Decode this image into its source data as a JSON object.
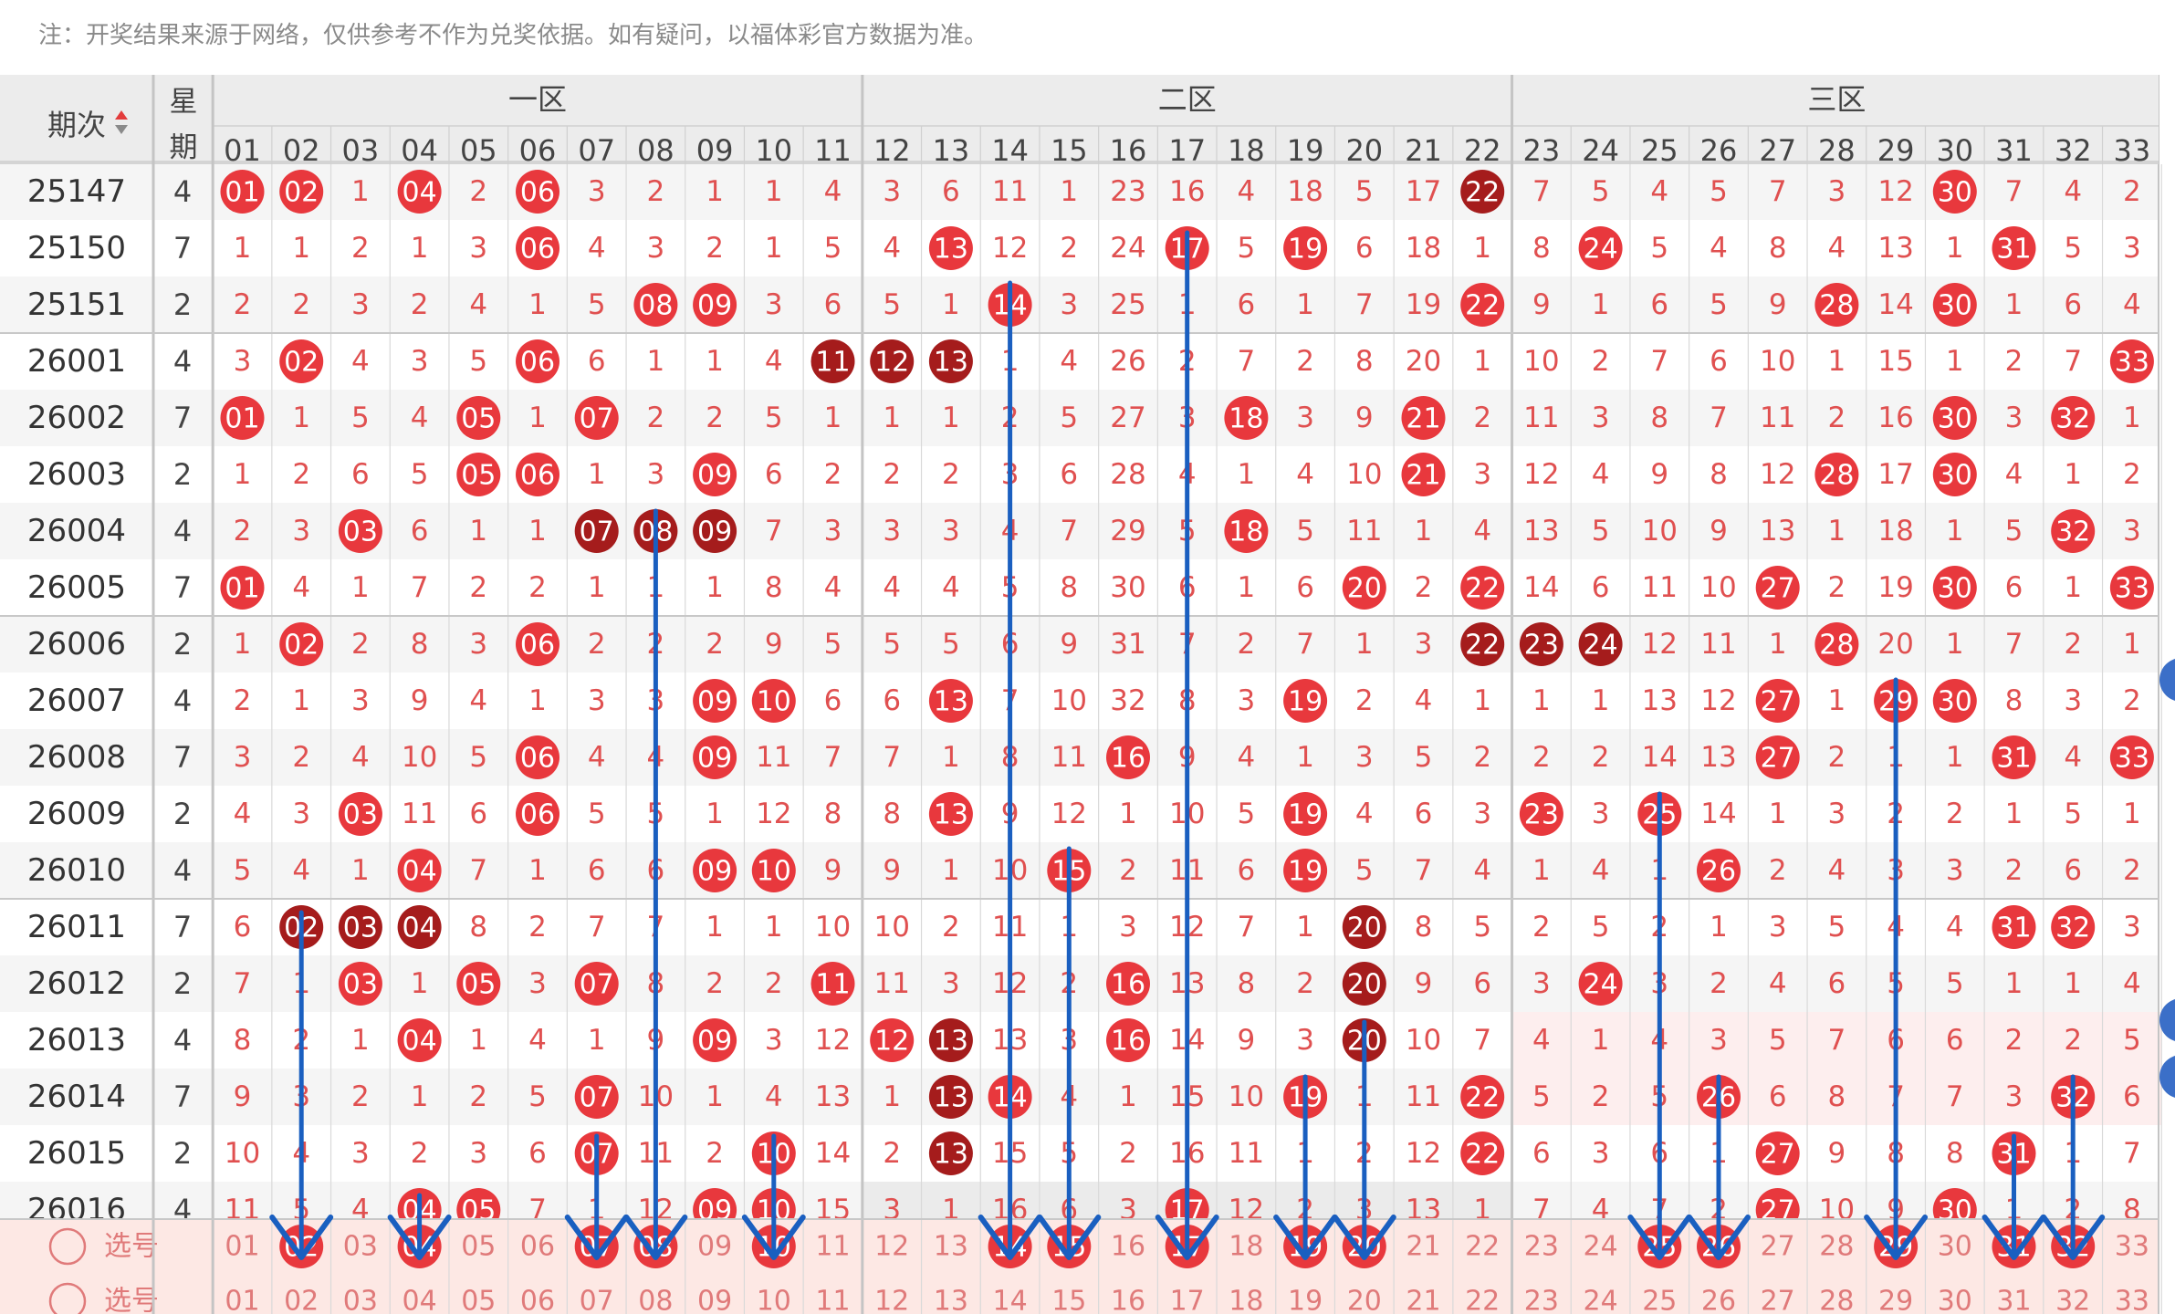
{
  "note": "注：开奖结果来源于网络，仅供参考不作为兑奖依据。如有疑问，以福体彩官方数据为准。",
  "header": {
    "period_label": "期次",
    "weekday_label": "星期",
    "zones": [
      "一区",
      "二区",
      "三区"
    ],
    "numbers": [
      "01",
      "02",
      "03",
      "04",
      "05",
      "06",
      "07",
      "08",
      "09",
      "10",
      "11",
      "12",
      "13",
      "14",
      "15",
      "16",
      "17",
      "18",
      "19",
      "20",
      "21",
      "22",
      "23",
      "24",
      "25",
      "26",
      "27",
      "28",
      "29",
      "30",
      "31",
      "32",
      "33"
    ]
  },
  "colors": {
    "hit": "#e8383d",
    "hit_dark": "#a51c1c",
    "miss_text": "#e05050",
    "arrow": "#1a5fc0",
    "header_bg": "#ececec",
    "select_row_bg": "#fde8e4",
    "select_text": "#e07a7a"
  },
  "select_rows": [
    {
      "label": "选号",
      "picked": [
        "02",
        "04",
        "07",
        "08",
        "10",
        "14",
        "15",
        "17",
        "19",
        "20",
        "25",
        "26",
        "29",
        "31",
        "32"
      ]
    },
    {
      "label": "选号",
      "picked": []
    }
  ],
  "rows": [
    {
      "issue": "25147",
      "week": "4",
      "cells": [
        "01",
        "02",
        "1",
        "04",
        "2",
        "06",
        "3",
        "2",
        "1",
        "1",
        "4",
        "3",
        "6",
        "11",
        "1",
        "23",
        "16",
        "4",
        "18",
        "5",
        "17",
        "22",
        "7",
        "5",
        "4",
        "5",
        "7",
        "3",
        "12",
        "30",
        "7",
        "4",
        "2"
      ],
      "dark": [
        22
      ]
    },
    {
      "issue": "25150",
      "week": "7",
      "cells": [
        "1",
        "1",
        "2",
        "1",
        "3",
        "06",
        "4",
        "3",
        "2",
        "1",
        "5",
        "4",
        "13",
        "12",
        "2",
        "24",
        "17",
        "5",
        "19",
        "6",
        "18",
        "1",
        "8",
        "24",
        "5",
        "4",
        "8",
        "4",
        "13",
        "1",
        "31",
        "5",
        "3"
      ],
      "dark": []
    },
    {
      "issue": "25151",
      "week": "2",
      "cells": [
        "2",
        "2",
        "3",
        "2",
        "4",
        "1",
        "5",
        "08",
        "09",
        "3",
        "6",
        "5",
        "1",
        "14",
        "3",
        "25",
        "1",
        "6",
        "1",
        "7",
        "19",
        "22",
        "9",
        "1",
        "6",
        "5",
        "9",
        "28",
        "14",
        "30",
        "1",
        "6",
        "4"
      ],
      "dark": []
    },
    {
      "issue": "26001",
      "week": "4",
      "cells": [
        "3",
        "02",
        "4",
        "3",
        "5",
        "06",
        "6",
        "1",
        "1",
        "4",
        "11",
        "12",
        "13",
        "1",
        "4",
        "26",
        "2",
        "7",
        "2",
        "8",
        "20",
        "1",
        "10",
        "2",
        "7",
        "6",
        "10",
        "1",
        "15",
        "1",
        "2",
        "7",
        "33"
      ],
      "dark": [
        11,
        12,
        13
      ]
    },
    {
      "issue": "26002",
      "week": "7",
      "cells": [
        "01",
        "1",
        "5",
        "4",
        "05",
        "1",
        "07",
        "2",
        "2",
        "5",
        "1",
        "1",
        "1",
        "2",
        "5",
        "27",
        "3",
        "18",
        "3",
        "9",
        "21",
        "2",
        "11",
        "3",
        "8",
        "7",
        "11",
        "2",
        "16",
        "30",
        "3",
        "32",
        "1"
      ],
      "dark": []
    },
    {
      "issue": "26003",
      "week": "2",
      "cells": [
        "1",
        "2",
        "6",
        "5",
        "05",
        "06",
        "1",
        "3",
        "09",
        "6",
        "2",
        "2",
        "2",
        "3",
        "6",
        "28",
        "4",
        "1",
        "4",
        "10",
        "21",
        "3",
        "12",
        "4",
        "9",
        "8",
        "12",
        "28",
        "17",
        "30",
        "4",
        "1",
        "2"
      ],
      "dark": []
    },
    {
      "issue": "26004",
      "week": "4",
      "cells": [
        "2",
        "3",
        "03",
        "6",
        "1",
        "1",
        "07",
        "08",
        "09",
        "7",
        "3",
        "3",
        "3",
        "4",
        "7",
        "29",
        "5",
        "18",
        "5",
        "11",
        "1",
        "4",
        "13",
        "5",
        "10",
        "9",
        "13",
        "1",
        "18",
        "1",
        "5",
        "32",
        "3"
      ],
      "dark": [
        7,
        8,
        9
      ]
    },
    {
      "issue": "26005",
      "week": "7",
      "cells": [
        "01",
        "4",
        "1",
        "7",
        "2",
        "2",
        "1",
        "1",
        "1",
        "8",
        "4",
        "4",
        "4",
        "5",
        "8",
        "30",
        "6",
        "1",
        "6",
        "20",
        "2",
        "22",
        "14",
        "6",
        "11",
        "10",
        "27",
        "2",
        "19",
        "30",
        "6",
        "1",
        "33"
      ],
      "dark": []
    },
    {
      "issue": "26006",
      "week": "2",
      "cells": [
        "1",
        "02",
        "2",
        "8",
        "3",
        "06",
        "2",
        "2",
        "2",
        "9",
        "5",
        "5",
        "5",
        "6",
        "9",
        "31",
        "7",
        "2",
        "7",
        "1",
        "3",
        "22",
        "23",
        "24",
        "12",
        "11",
        "1",
        "28",
        "20",
        "1",
        "7",
        "2",
        "1"
      ],
      "dark": [
        22,
        23,
        24
      ]
    },
    {
      "issue": "26007",
      "week": "4",
      "cells": [
        "2",
        "1",
        "3",
        "9",
        "4",
        "1",
        "3",
        "3",
        "09",
        "10",
        "6",
        "6",
        "13",
        "7",
        "10",
        "32",
        "8",
        "3",
        "19",
        "2",
        "4",
        "1",
        "1",
        "1",
        "13",
        "12",
        "27",
        "1",
        "29",
        "30",
        "8",
        "3",
        "2"
      ],
      "dark": []
    },
    {
      "issue": "26008",
      "week": "7",
      "cells": [
        "3",
        "2",
        "4",
        "10",
        "5",
        "06",
        "4",
        "4",
        "09",
        "11",
        "7",
        "7",
        "1",
        "8",
        "11",
        "16",
        "9",
        "4",
        "1",
        "3",
        "5",
        "2",
        "2",
        "2",
        "14",
        "13",
        "27",
        "2",
        "1",
        "1",
        "31",
        "4",
        "33"
      ],
      "dark": []
    },
    {
      "issue": "26009",
      "week": "2",
      "cells": [
        "4",
        "3",
        "03",
        "11",
        "6",
        "06",
        "5",
        "5",
        "1",
        "12",
        "8",
        "8",
        "13",
        "9",
        "12",
        "1",
        "10",
        "5",
        "19",
        "4",
        "6",
        "3",
        "23",
        "3",
        "25",
        "14",
        "1",
        "3",
        "2",
        "2",
        "1",
        "5",
        "1"
      ],
      "dark": []
    },
    {
      "issue": "26010",
      "week": "4",
      "cells": [
        "5",
        "4",
        "1",
        "04",
        "7",
        "1",
        "6",
        "6",
        "09",
        "10",
        "9",
        "9",
        "1",
        "10",
        "15",
        "2",
        "11",
        "6",
        "19",
        "5",
        "7",
        "4",
        "1",
        "4",
        "1",
        "26",
        "2",
        "4",
        "3",
        "3",
        "2",
        "6",
        "2"
      ],
      "dark": []
    },
    {
      "issue": "26011",
      "week": "7",
      "cells": [
        "6",
        "02",
        "03",
        "04",
        "8",
        "2",
        "7",
        "7",
        "1",
        "1",
        "10",
        "10",
        "2",
        "11",
        "1",
        "3",
        "12",
        "7",
        "1",
        "20",
        "8",
        "5",
        "2",
        "5",
        "2",
        "1",
        "3",
        "5",
        "4",
        "4",
        "31",
        "32",
        "3"
      ],
      "dark": [
        2,
        3,
        4,
        20
      ]
    },
    {
      "issue": "26012",
      "week": "2",
      "cells": [
        "7",
        "1",
        "03",
        "1",
        "05",
        "3",
        "07",
        "8",
        "2",
        "2",
        "11",
        "11",
        "3",
        "12",
        "2",
        "16",
        "13",
        "8",
        "2",
        "20",
        "9",
        "6",
        "3",
        "24",
        "3",
        "2",
        "4",
        "6",
        "5",
        "5",
        "1",
        "1",
        "4"
      ],
      "dark": [
        20
      ]
    },
    {
      "issue": "26013",
      "week": "4",
      "cells": [
        "8",
        "2",
        "1",
        "04",
        "1",
        "4",
        "1",
        "9",
        "09",
        "3",
        "12",
        "12",
        "13",
        "13",
        "3",
        "16",
        "14",
        "9",
        "3",
        "20",
        "10",
        "7",
        "4",
        "1",
        "4",
        "3",
        "5",
        "7",
        "6",
        "6",
        "2",
        "2",
        "5"
      ],
      "dark": [
        13,
        20
      ]
    },
    {
      "issue": "26014",
      "week": "7",
      "cells": [
        "9",
        "3",
        "2",
        "1",
        "2",
        "5",
        "07",
        "10",
        "1",
        "4",
        "13",
        "1",
        "13",
        "14",
        "4",
        "1",
        "15",
        "10",
        "19",
        "1",
        "11",
        "22",
        "5",
        "2",
        "5",
        "26",
        "6",
        "8",
        "7",
        "7",
        "3",
        "32",
        "6"
      ],
      "dark": [
        13
      ]
    },
    {
      "issue": "26015",
      "week": "2",
      "cells": [
        "10",
        "4",
        "3",
        "2",
        "3",
        "6",
        "07",
        "11",
        "2",
        "10",
        "14",
        "2",
        "13",
        "15",
        "5",
        "2",
        "16",
        "11",
        "1",
        "2",
        "12",
        "22",
        "6",
        "3",
        "6",
        "1",
        "27",
        "9",
        "8",
        "8",
        "31",
        "1",
        "7"
      ],
      "dark": [
        13
      ]
    },
    {
      "issue": "26016",
      "week": "4",
      "cells": [
        "11",
        "5",
        "4",
        "04",
        "05",
        "7",
        "1",
        "12",
        "09",
        "10",
        "15",
        "3",
        "1",
        "16",
        "6",
        "3",
        "17",
        "12",
        "2",
        "3",
        "13",
        "1",
        "7",
        "4",
        "7",
        "2",
        "27",
        "10",
        "9",
        "30",
        "1",
        "2",
        "8"
      ],
      "dark": []
    }
  ]
}
